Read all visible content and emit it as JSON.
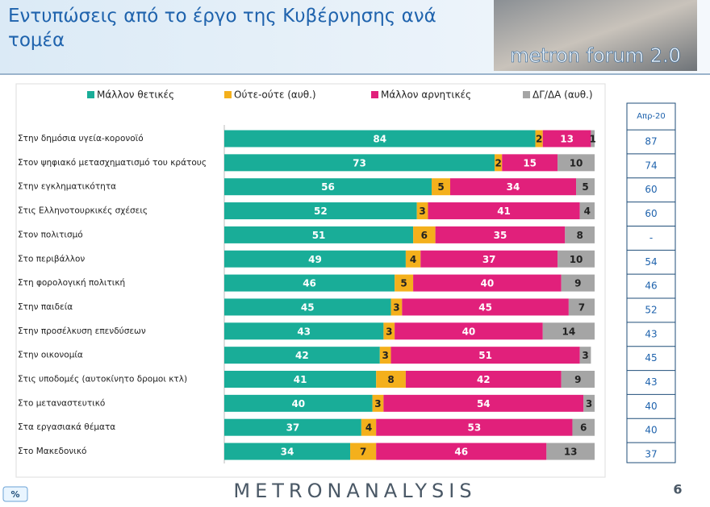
{
  "chart_data": {
    "type": "stacked-barh",
    "title": "Εντυπώσεις από το έργο της Κυβέρνησης ανά τομέα",
    "categories": [
      "Στην δημόσια υγεία-κορονοϊό",
      "Στον ψηφιακό μετασχηματισμό του κράτους",
      "Στην εγκληματικότητα",
      "Στις Ελληνοτουρκικές σχέσεις",
      "Στον πολιτισμό",
      "Στο περιβάλλον",
      "Στη φορολογική πολιτική",
      "Στην παιδεία",
      "Στην προσέλκυση επενδύσεων",
      "Στην οικονομία",
      "Στις υποδομές (αυτοκίνητο δρομοι κτλ)",
      "Στο μεταναστευτικό",
      "Στα εργασιακά θέματα",
      "Στο Μακεδονικό"
    ],
    "series": [
      {
        "name": "Μάλλον θετικές",
        "color": "#19ad98",
        "values": [
          84,
          73,
          56,
          52,
          51,
          49,
          46,
          45,
          43,
          42,
          41,
          40,
          37,
          34
        ]
      },
      {
        "name": "Ούτε-ούτε  (αυθ.)",
        "color": "#f4b01c",
        "values": [
          2,
          2,
          5,
          3,
          6,
          4,
          5,
          3,
          3,
          3,
          8,
          3,
          4,
          7
        ]
      },
      {
        "name": "Μάλλον αρνητικές",
        "color": "#e1207b",
        "values": [
          13,
          15,
          34,
          41,
          35,
          37,
          40,
          45,
          40,
          51,
          42,
          54,
          53,
          46
        ]
      },
      {
        "name": "ΔΓ/ΔΑ (αυθ.)",
        "color": "#a5a5a5",
        "values": [
          1,
          10,
          5,
          4,
          8,
          10,
          9,
          7,
          14,
          3,
          9,
          3,
          6,
          13
        ]
      }
    ],
    "xlim": [
      0,
      100
    ]
  },
  "side_table": {
    "header": "Απρ-20",
    "values": [
      87,
      74,
      60,
      60,
      "-",
      54,
      46,
      52,
      43,
      45,
      43,
      40,
      40,
      37
    ]
  },
  "logo": "metron forum 2.0",
  "footer": "METRONANALYSIS",
  "page_number": "6",
  "button": "%"
}
